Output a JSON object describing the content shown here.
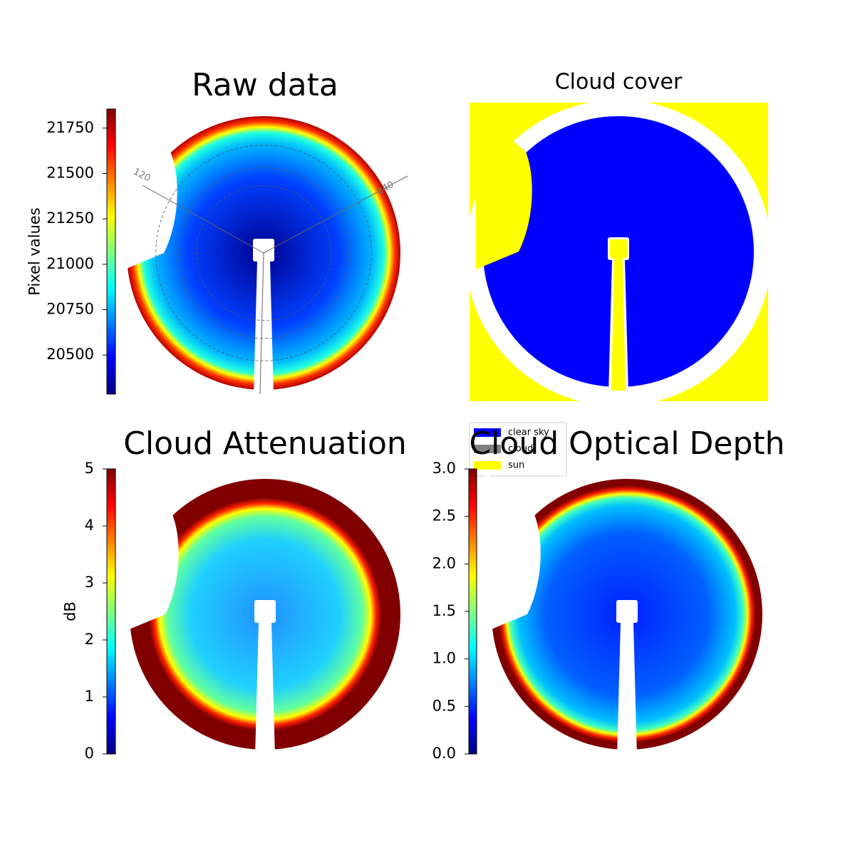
{
  "chart_data": [
    {
      "type": "image",
      "title": "Raw data",
      "colorbar": {
        "label": "Pixel values",
        "lim": [
          20285,
          21855
        ],
        "ticks": [
          20500,
          20750,
          21000,
          21250,
          21500,
          21750
        ]
      },
      "annotations": [
        "120",
        "240"
      ]
    },
    {
      "type": "mask",
      "title": "Cloud cover",
      "legend": [
        {
          "name": "clear sky",
          "color": "#0000ff"
        },
        {
          "name": "cloud",
          "color": "#808080"
        },
        {
          "name": "sun",
          "color": "#ffff00"
        }
      ]
    },
    {
      "type": "image",
      "title": "Cloud Attenuation",
      "colorbar": {
        "label": "dB",
        "lim": [
          0,
          5
        ],
        "ticks": [
          0,
          1,
          2,
          3,
          4,
          5
        ]
      }
    },
    {
      "type": "image",
      "title": "Cloud Optical Depth",
      "colorbar": {
        "lim": [
          0,
          3
        ],
        "ticks": [
          {
            "value": 0,
            "label": "0.0"
          },
          0.5,
          {
            "value": 1,
            "label": "1.0"
          },
          1.5,
          {
            "value": 2,
            "label": "2.0"
          },
          2.5,
          {
            "value": 3,
            "label": "3.0"
          }
        ]
      }
    }
  ]
}
